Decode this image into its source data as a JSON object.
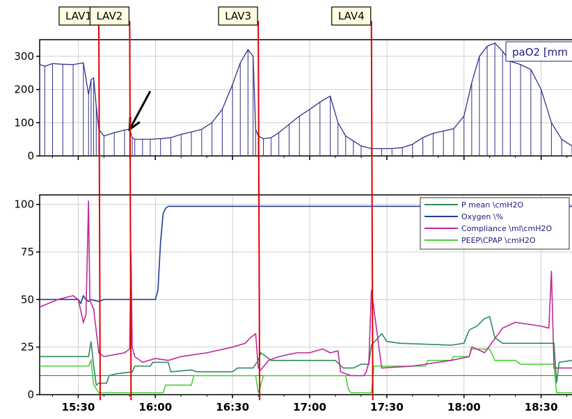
{
  "colors": {
    "pao2": "#2f2f8f",
    "pmean": "#2e8b57",
    "oxygen": "#1f3a9e",
    "compliance": "#c0279a",
    "peep": "#4ccf3a",
    "lavage": "#e00000",
    "grid": "#cfcfcf",
    "legend_text": "#1a1a80",
    "lavlabel_bg": "#fffde0"
  },
  "icons": {
    "arrow": "black-arrow-icon"
  },
  "chart_data": [
    {
      "type": "line",
      "title": "",
      "xlabel": "",
      "ylabel": "",
      "legend": {
        "position": "top-right",
        "text": "paO2 [mm"
      },
      "ylim": [
        0,
        350
      ],
      "yticks": [
        "0",
        "100",
        "200",
        "300"
      ],
      "xlim": [
        "15:15",
        "18:42"
      ],
      "grid": true,
      "series": [
        {
          "name": "paO2 [mm",
          "x": [
            "15:15",
            "15:17",
            "15:20",
            "15:24",
            "15:28",
            "15:32",
            "15:34",
            "15:35",
            "15:36",
            "15:37",
            "15:38",
            "15:40",
            "15:44",
            "15:48",
            "15:50",
            "15:51",
            "15:52",
            "15:55",
            "15:58",
            "16:02",
            "16:06",
            "16:10",
            "16:14",
            "16:18",
            "16:22",
            "16:26",
            "16:30",
            "16:33",
            "16:36",
            "16:38",
            "16:39",
            "16:40",
            "16:42",
            "16:45",
            "16:48",
            "16:52",
            "16:56",
            "17:00",
            "17:04",
            "17:08",
            "17:11",
            "17:14",
            "17:17",
            "17:20",
            "17:24",
            "17:28",
            "17:32",
            "17:36",
            "17:40",
            "17:44",
            "17:48",
            "17:52",
            "17:56",
            "18:00",
            "18:03",
            "18:06",
            "18:09",
            "18:12",
            "18:15",
            "18:18",
            "18:22",
            "18:26",
            "18:30",
            "18:34",
            "18:38",
            "18:42"
          ],
          "y": [
            275,
            270,
            278,
            276,
            275,
            280,
            185,
            230,
            235,
            150,
            80,
            60,
            70,
            78,
            80,
            55,
            50,
            50,
            50,
            52,
            55,
            65,
            72,
            80,
            100,
            140,
            215,
            280,
            320,
            300,
            80,
            60,
            52,
            55,
            70,
            95,
            120,
            140,
            162,
            180,
            100,
            60,
            45,
            30,
            22,
            22,
            22,
            25,
            35,
            55,
            68,
            75,
            82,
            120,
            220,
            300,
            330,
            340,
            315,
            285,
            275,
            260,
            200,
            100,
            50,
            30
          ]
        }
      ],
      "annotations": [
        {
          "type": "arrow",
          "from_time": "15:58",
          "from_value": 195,
          "to_time": "15:50",
          "to_value": 80
        }
      ]
    },
    {
      "type": "line",
      "title": "",
      "xlabel": "",
      "ylabel": "",
      "legend": {
        "position": "top-right"
      },
      "ylim": [
        0,
        105
      ],
      "yticks": [
        "0",
        "25",
        "50",
        "75",
        "100"
      ],
      "xlim": [
        "15:15",
        "18:42"
      ],
      "xticks": [
        "15:30",
        "16:00",
        "16:30",
        "17:00",
        "17:30",
        "18:00",
        "18:30"
      ],
      "grid": true,
      "reference_line": 10,
      "series": [
        {
          "name": "P mean \\cmH2O",
          "x": [
            "15:15",
            "15:34",
            "15:35",
            "15:36",
            "15:37",
            "15:38",
            "15:41",
            "15:42",
            "15:45",
            "15:51",
            "15:52",
            "15:58",
            "15:59",
            "16:05",
            "16:06",
            "16:14",
            "16:16",
            "16:30",
            "16:32",
            "16:38",
            "16:40",
            "16:41",
            "16:45",
            "17:10",
            "17:13",
            "17:16",
            "17:17",
            "17:20",
            "17:23",
            "17:24",
            "17:28",
            "17:30",
            "17:35",
            "17:55",
            "18:00",
            "18:02",
            "18:05",
            "18:08",
            "18:10",
            "18:12",
            "18:15",
            "18:35",
            "18:36",
            "18:37",
            "18:42"
          ],
          "y": [
            20,
            20,
            28,
            15,
            5,
            6,
            6,
            10,
            11,
            12,
            15,
            15,
            17,
            17,
            12,
            13,
            12,
            12,
            14,
            14,
            18,
            22,
            18,
            18,
            14,
            14,
            14,
            16,
            16,
            26,
            32,
            28,
            27,
            26,
            27,
            34,
            36,
            40,
            41,
            30,
            27,
            27,
            6,
            17,
            18
          ]
        },
        {
          "name": "Oxygen \\%",
          "x": [
            "15:15",
            "15:30",
            "15:31",
            "15:32",
            "15:33",
            "15:34",
            "15:35",
            "15:38",
            "15:40",
            "16:00",
            "16:01",
            "16:02",
            "16:03",
            "16:04",
            "16:05",
            "18:42"
          ],
          "y": [
            50,
            50,
            48,
            52,
            50,
            49,
            50,
            49,
            50,
            50,
            55,
            80,
            95,
            98,
            99,
            99
          ]
        },
        {
          "name": "Compliance \\ml\\cmH2O",
          "x": [
            "15:15",
            "15:22",
            "15:28",
            "15:30",
            "15:32",
            "15:33",
            "15:34",
            "15:34.5",
            "15:35",
            "15:36",
            "15:38",
            "15:40",
            "15:48",
            "15:50",
            "15:50.5",
            "15:51",
            "15:52",
            "15:55",
            "16:00",
            "16:05",
            "16:10",
            "16:20",
            "16:30",
            "16:35",
            "16:37",
            "16:39",
            "16:40",
            "16:41",
            "16:44",
            "16:48",
            "16:55",
            "17:00",
            "17:05",
            "17:08",
            "17:11",
            "17:12",
            "17:16",
            "17:21",
            "17:22",
            "17:23",
            "17:24",
            "17:28",
            "17:40",
            "17:55",
            "18:02",
            "18:03",
            "18:05",
            "18:08",
            "18:15",
            "18:20",
            "18:25",
            "18:30",
            "18:33",
            "18:34",
            "18:35",
            "18:42"
          ],
          "y": [
            46,
            50,
            52,
            50,
            38,
            42,
            102,
            50,
            48,
            45,
            22,
            20,
            22,
            24,
            75,
            25,
            20,
            17,
            19,
            18,
            20,
            22,
            25,
            27,
            30,
            32,
            14,
            13,
            18,
            20,
            22,
            22,
            24,
            22,
            23,
            12,
            10,
            10,
            12,
            17,
            55,
            14,
            15,
            18,
            20,
            25,
            24,
            22,
            35,
            38,
            37,
            36,
            35,
            65,
            14,
            14
          ]
        },
        {
          "name": "PEEP\\CPAP \\cmH2O",
          "x": [
            "15:15",
            "15:34",
            "15:35",
            "15:36",
            "15:38",
            "15:45",
            "15:51",
            "15:53",
            "16:00",
            "16:03",
            "16:04",
            "16:05",
            "16:14",
            "16:15",
            "16:30",
            "16:32",
            "16:39",
            "16:40",
            "16:41",
            "16:42",
            "16:58",
            "16:59",
            "17:14",
            "17:15",
            "17:16",
            "17:24",
            "17:25",
            "17:30",
            "17:45",
            "17:46",
            "17:55",
            "17:56",
            "18:02",
            "18:03",
            "18:10",
            "18:12",
            "18:20",
            "18:22",
            "18:35",
            "18:36",
            "18:42"
          ],
          "y": [
            15,
            15,
            18,
            5,
            1,
            1,
            1,
            1,
            1,
            1,
            5,
            5,
            5,
            10,
            10,
            10,
            10,
            1,
            5,
            10,
            10,
            10,
            10,
            3,
            1,
            1,
            15,
            15,
            15,
            18,
            18,
            20,
            20,
            24,
            24,
            18,
            18,
            16,
            16,
            1,
            1
          ]
        }
      ]
    }
  ],
  "lavage_events": [
    {
      "label": "LAV1",
      "time": "15:38"
    },
    {
      "label": "LAV2",
      "time": "15:50"
    },
    {
      "label": "LAV3",
      "time": "16:40"
    },
    {
      "label": "LAV4",
      "time": "17:24"
    }
  ]
}
